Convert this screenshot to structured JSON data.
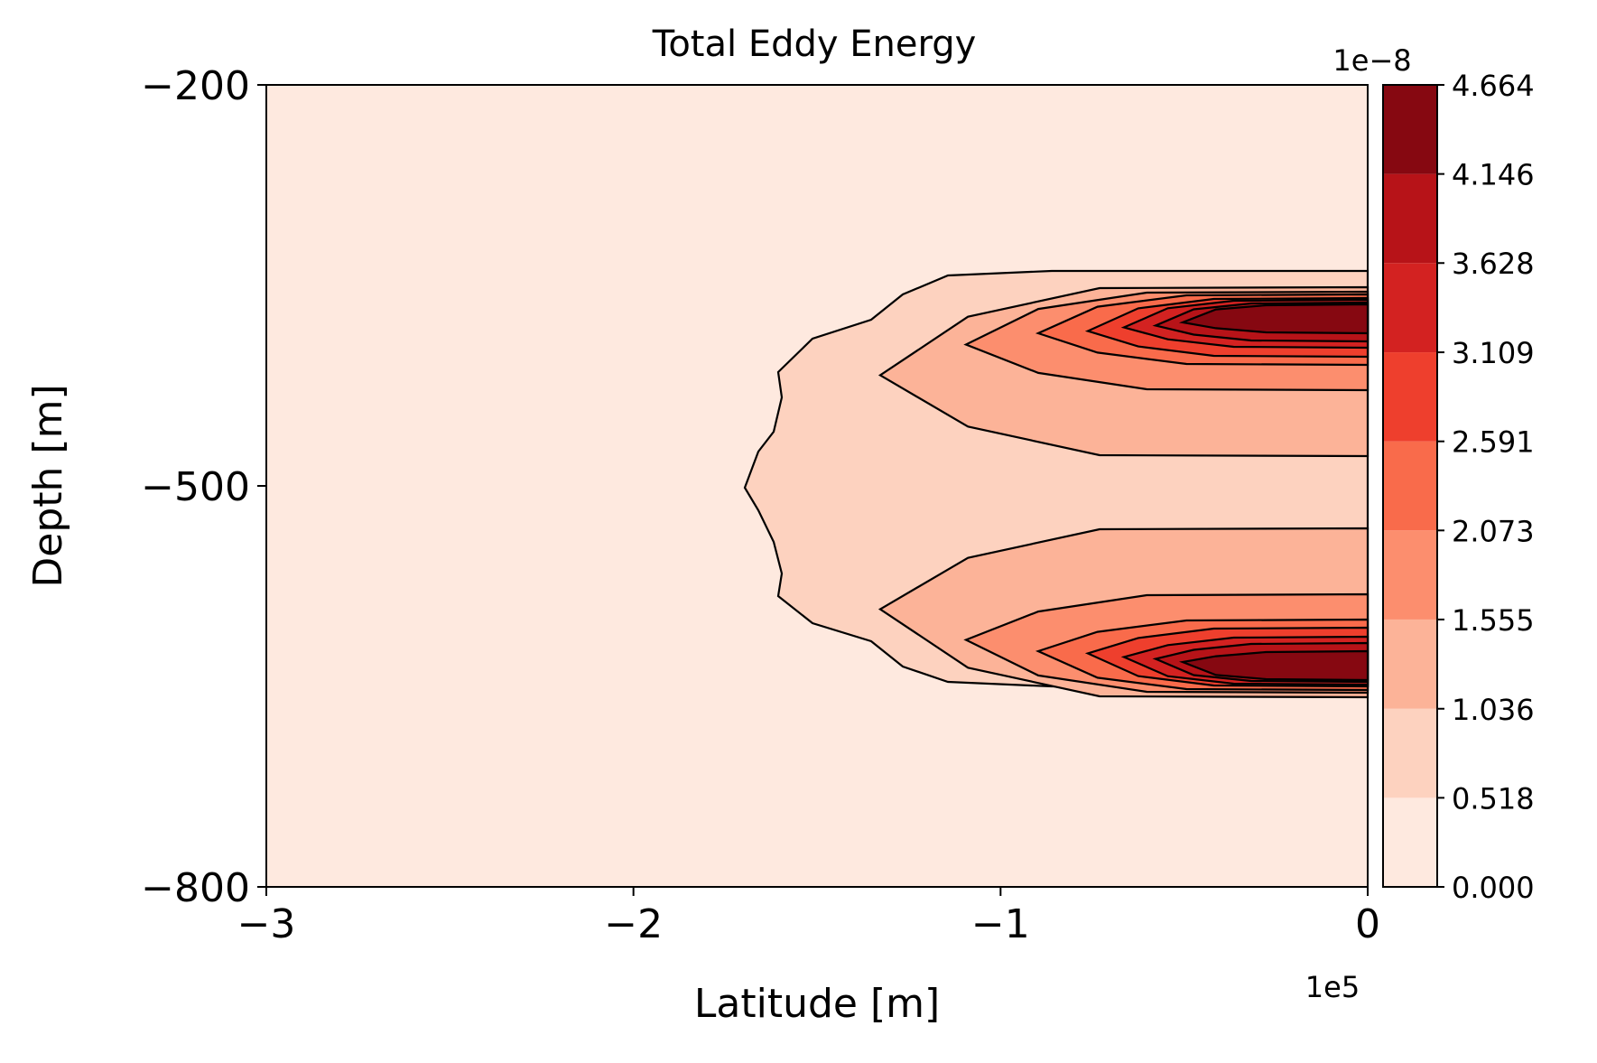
{
  "chart_data": {
    "type": "contourf",
    "title": "Total Eddy Energy",
    "xlabel": "Latitude [m]",
    "ylabel": "Depth [m]",
    "xlim": [
      -3,
      0
    ],
    "ylim": [
      -800,
      -200
    ],
    "x_ticks": [
      "−3",
      "−2",
      "−1",
      "0"
    ],
    "x_tick_values": [
      -3,
      -2,
      -1,
      0
    ],
    "x_offset_text": "1e5",
    "y_ticks": [
      "−200",
      "−500",
      "−800"
    ],
    "y_tick_values": [
      -200,
      -500,
      -800
    ],
    "grid": false,
    "colormap": "Reds",
    "colorbar": {
      "label_offset": "1e−8",
      "levels": [
        "0.000",
        "0.518",
        "1.036",
        "1.555",
        "2.073",
        "2.591",
        "3.109",
        "3.628",
        "4.146",
        "4.664"
      ],
      "level_values": [
        0.0,
        0.518,
        1.036,
        1.555,
        2.073,
        2.591,
        3.109,
        3.628,
        4.146,
        4.664
      ],
      "colors": [
        "#fee9df",
        "#fdd2bf",
        "#fcb398",
        "#fc8e6e",
        "#f96b4b",
        "#ee3f2d",
        "#d32221",
        "#b71318",
        "#860811"
      ]
    },
    "contours": [
      {
        "level_index": 1,
        "lobe_outline_x": [
          -1.7,
          -1.6,
          -1.5,
          -1.35,
          -1.2,
          -1.0,
          -0.7,
          -0.35,
          0
        ]
      },
      {
        "level_index": 2,
        "lobe_outline_x": [
          -1.3,
          -1.2,
          -1.1,
          -0.9,
          -0.7,
          -0.35,
          0
        ]
      },
      {
        "level_index": 3,
        "lobe_outline_x": [
          -1.1,
          -1.0,
          -0.9,
          -0.7,
          -0.35,
          0
        ]
      },
      {
        "level_index": 4,
        "lobe_outline_x": [
          -0.9,
          -0.8,
          -0.7,
          -0.6,
          -0.35,
          0
        ]
      },
      {
        "level_index": 5,
        "lobe_outline_x": [
          -0.8,
          -0.7,
          -0.6,
          -0.4,
          0
        ]
      },
      {
        "level_index": 6,
        "lobe_outline_x": [
          -0.7,
          -0.6,
          -0.5,
          -0.3,
          0
        ]
      },
      {
        "level_index": 7,
        "lobe_outline_x": [
          -0.6,
          -0.5,
          -0.4,
          -0.2,
          0
        ]
      },
      {
        "level_index": 8,
        "lobe_outline_x": [
          -0.5,
          -0.45,
          -0.35,
          -0.25,
          0
        ]
      }
    ]
  }
}
